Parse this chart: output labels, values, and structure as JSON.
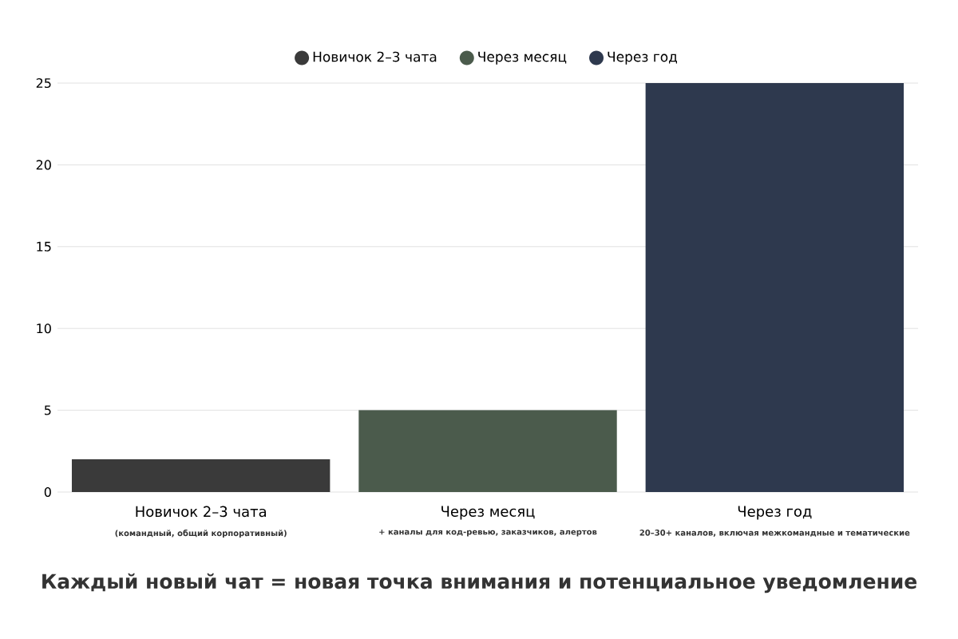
{
  "chart_data": {
    "type": "bar",
    "title": "Каждый новый чат = новая точка внимания и потенциальное уведомление",
    "categories": [
      "Новичок 2–3 чата",
      "Через месяц",
      "Через год"
    ],
    "series": [
      {
        "name": "Новичок 2–3 чата",
        "color": "#3a3a3a",
        "values": [
          2,
          null,
          null
        ]
      },
      {
        "name": "Через месяц",
        "color": "#4b5b4c",
        "values": [
          null,
          5,
          null
        ]
      },
      {
        "name": "Через год",
        "color": "#2e394e",
        "values": [
          null,
          null,
          25
        ]
      }
    ],
    "ylim": [
      0,
      25
    ],
    "yticks": [
      0,
      5,
      10,
      15,
      20,
      25
    ],
    "grid": "y",
    "legend": "top",
    "annotations": [
      "(командный, общий корпоративный)",
      "+ каналы для код-ревью, заказчиков, алертов",
      "20–30+ каналов, включая межкомандные и тематические"
    ]
  }
}
